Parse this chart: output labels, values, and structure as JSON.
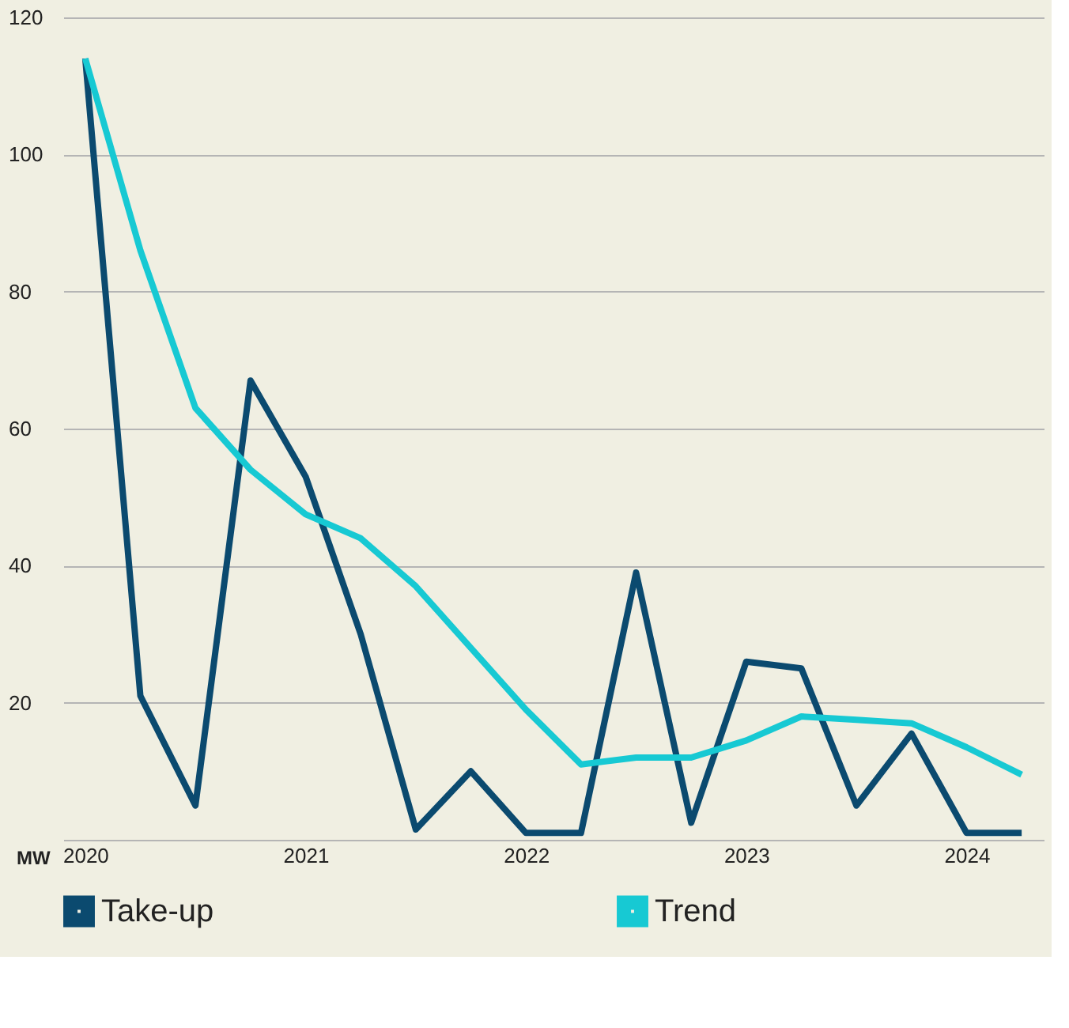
{
  "chart_data": {
    "type": "line",
    "ylabel": "MW",
    "x": [
      2020,
      2020.25,
      2020.5,
      2020.75,
      2021,
      2021.25,
      2021.5,
      2021.75,
      2022,
      2022.25,
      2022.5,
      2022.75,
      2023,
      2023.25,
      2023.5,
      2023.75,
      2024,
      2024.25
    ],
    "series": [
      {
        "name": "Take-up",
        "color": "#0b4a6f",
        "values": [
          114,
          21,
          5,
          67,
          53,
          30,
          1.5,
          10,
          1,
          1,
          39,
          2.5,
          26,
          25,
          5,
          15.5,
          1,
          1
        ]
      },
      {
        "name": "Trend",
        "color": "#17c9d3",
        "values": [
          114,
          86,
          63,
          54,
          47.5,
          44,
          37,
          28,
          19,
          11,
          12,
          12,
          14.5,
          18,
          17.5,
          17,
          13.5,
          9.5
        ]
      }
    ],
    "xlim": [
      2019.9,
      2024.35
    ],
    "xticks": [
      2020,
      2021,
      2022,
      2023,
      2024
    ],
    "ylim": [
      0,
      120
    ],
    "yticks": [
      {
        "value": 0,
        "label": null
      },
      20,
      40,
      60,
      80,
      100,
      120
    ],
    "grid": "y",
    "legend": "bottom",
    "marker": "none",
    "line_style": "solid"
  }
}
